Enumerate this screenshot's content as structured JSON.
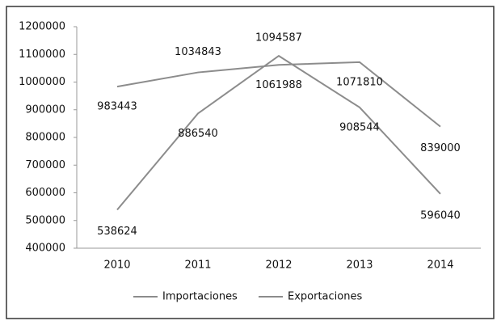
{
  "chart_data": {
    "type": "line",
    "categories": [
      "2010",
      "2011",
      "2012",
      "2013",
      "2014"
    ],
    "series": [
      {
        "name": "Importaciones",
        "color": "#8c8c8c",
        "values": [
          983443,
          1034843,
          1061988,
          1071810,
          839000
        ]
      },
      {
        "name": "Exportaciones",
        "color": "#8c8c8c",
        "values": [
          538624,
          886540,
          1094587,
          908544,
          596040
        ]
      }
    ],
    "ylim": [
      400000,
      1200000
    ],
    "yticks": [
      400000,
      500000,
      600000,
      700000,
      800000,
      900000,
      1000000,
      1100000,
      1200000
    ],
    "grid": false,
    "legend": "bottom"
  }
}
